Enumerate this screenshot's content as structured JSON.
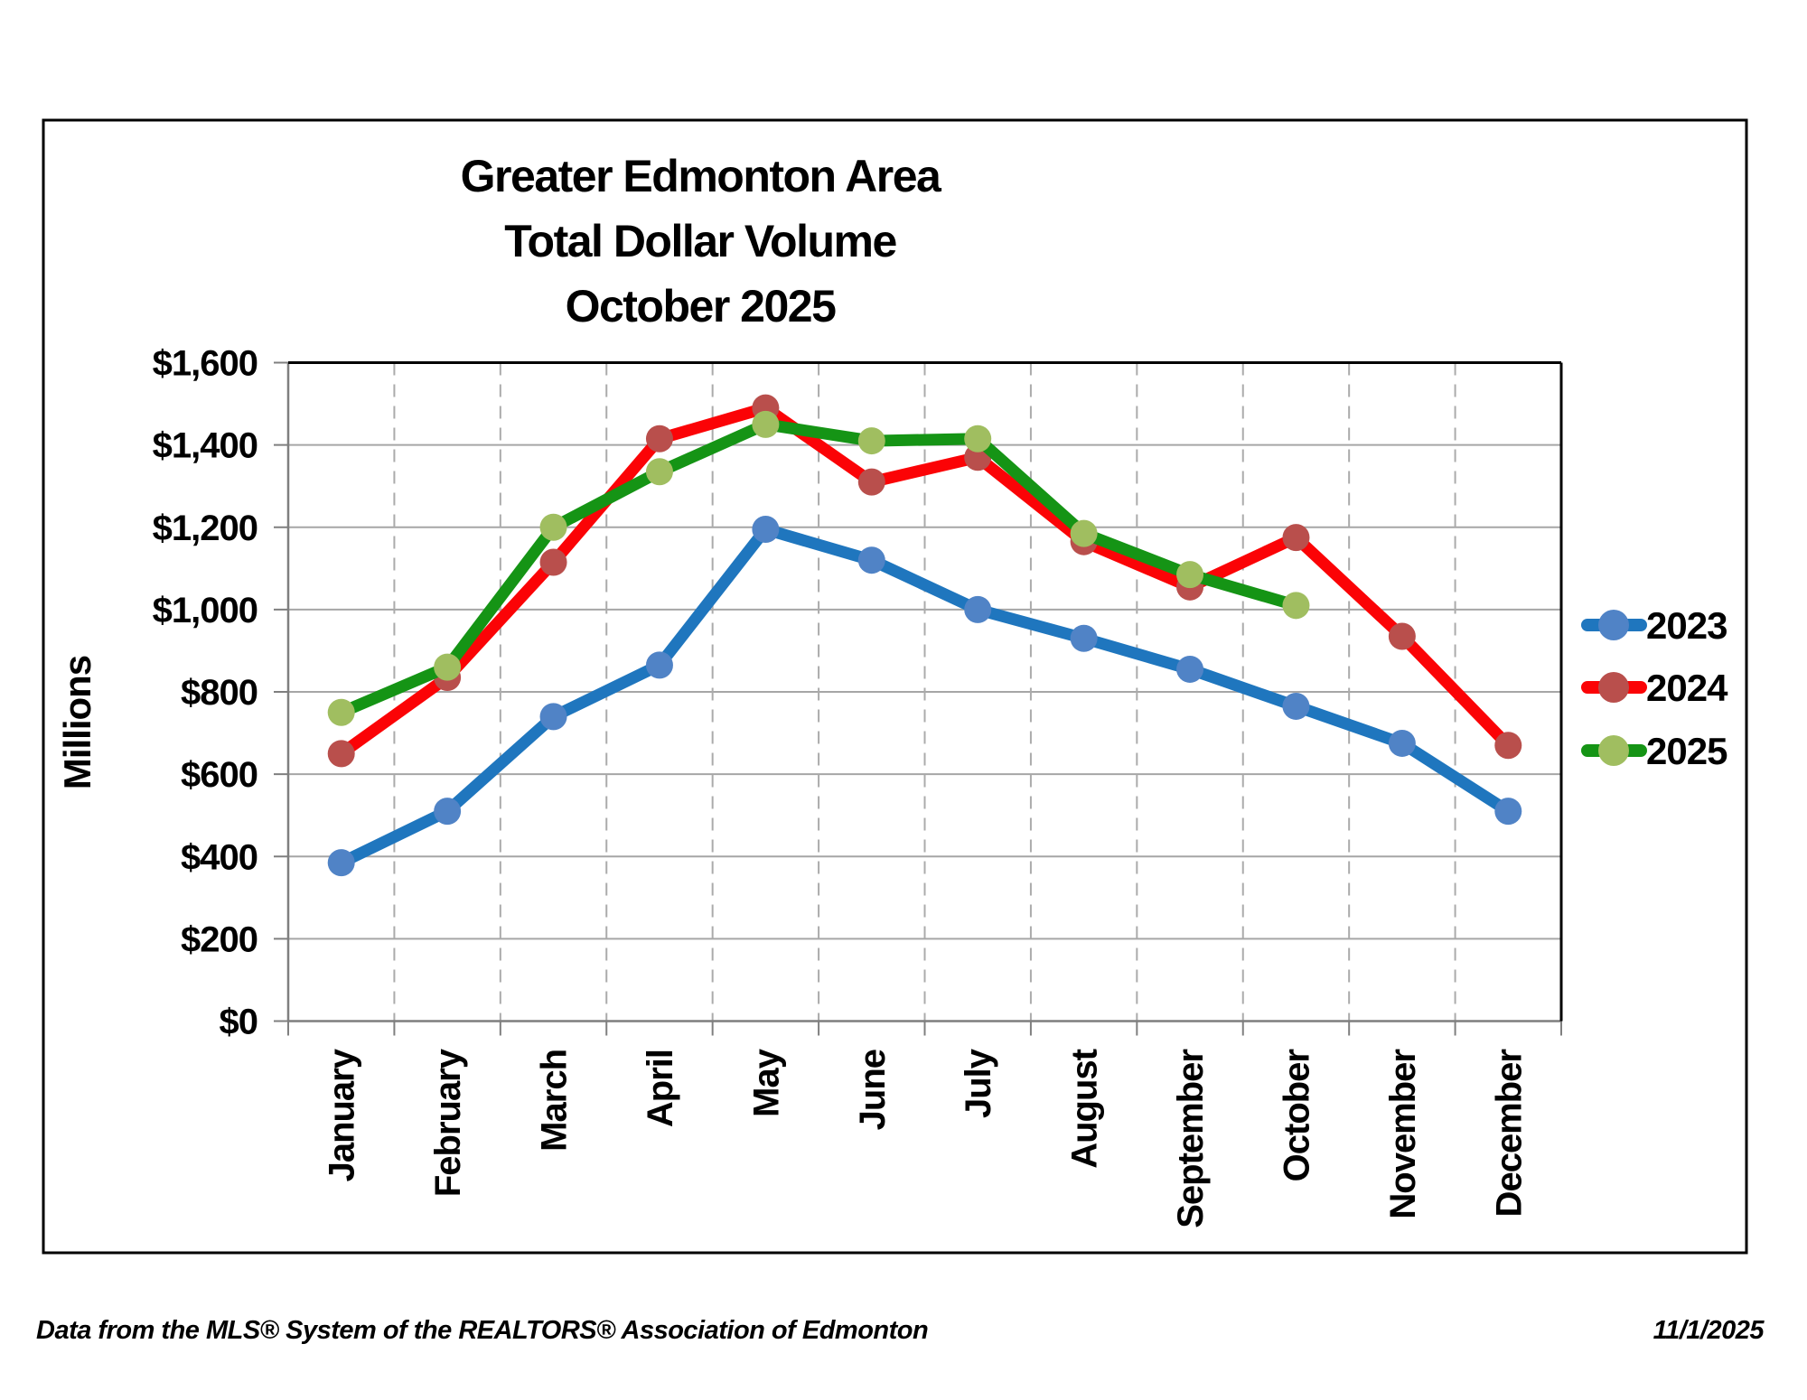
{
  "title": {
    "line1": "Greater Edmonton Area",
    "line2": "Total Dollar Volume",
    "line3": "October 2025"
  },
  "y_axis": {
    "title": "Millions",
    "tick_labels": [
      "$1,600",
      "$1,400",
      "$1,200",
      "$1,000",
      "$800",
      "$600",
      "$400",
      "$200",
      "$0"
    ]
  },
  "footer": {
    "source": "Data from the MLS® System of the REALTORS® Association of Edmonton",
    "date": "11/1/2025"
  },
  "colors": {
    "gridline": "#A6A6A6",
    "dashed_gridline": "#ABABAB",
    "axis": "#7F7F7F",
    "plot_border": "#000000"
  },
  "chart_data": {
    "type": "line",
    "title": "Greater Edmonton Area Total Dollar Volume October 2025",
    "categories": [
      "January",
      "February",
      "March",
      "April",
      "May",
      "June",
      "July",
      "August",
      "September",
      "October",
      "November",
      "December"
    ],
    "series": [
      {
        "name": "2023",
        "line_color": "#1F76BE",
        "marker_color": "#5083C6",
        "values": [
          385,
          510,
          740,
          865,
          1195,
          1120,
          1000,
          930,
          855,
          765,
          675,
          510
        ]
      },
      {
        "name": "2024",
        "line_color": "#FB0306",
        "marker_color": "#B94F4C",
        "values": [
          650,
          835,
          1115,
          1415,
          1490,
          1310,
          1370,
          1165,
          1055,
          1175,
          935,
          670
        ]
      },
      {
        "name": "2025",
        "line_color": "#159415",
        "marker_color": "#A0BE60",
        "values": [
          750,
          860,
          1200,
          1335,
          1450,
          1410,
          1415,
          1185,
          1085,
          1010,
          null,
          null
        ]
      }
    ],
    "xlabel": "",
    "ylabel": "Millions",
    "ylim": [
      0,
      1600
    ],
    "y_tick_step": 200,
    "grid": true,
    "legend_position": "right"
  }
}
